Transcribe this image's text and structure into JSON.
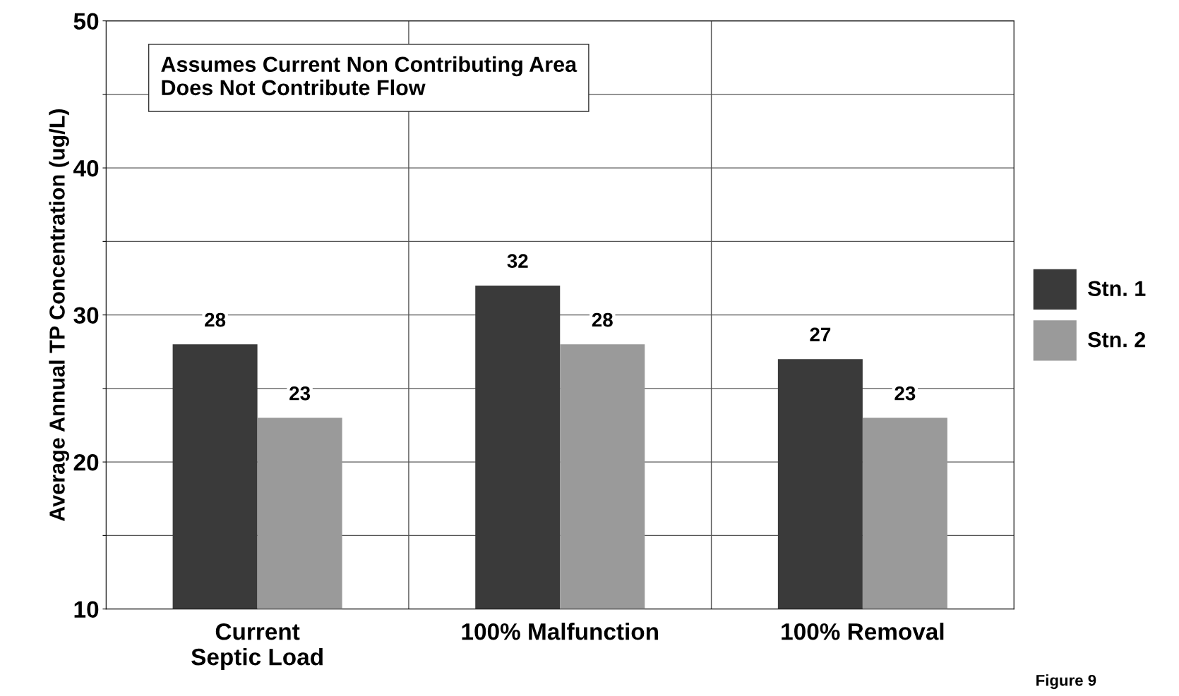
{
  "chart_data": {
    "type": "bar",
    "ylabel": "Average Annual TP Concentration (ug/L)",
    "categories": [
      "Current\nSeptic Load",
      "100% Malfunction",
      "100% Removal"
    ],
    "series": [
      {
        "name": "Stn. 1",
        "color": "#3a3a3a",
        "values": [
          28,
          32,
          27
        ]
      },
      {
        "name": "Stn. 2",
        "color": "#9a9a9a",
        "values": [
          23,
          28,
          23
        ]
      }
    ],
    "ylim": [
      10,
      50
    ],
    "yticks": [
      10,
      {
        "value": 15,
        "label": null
      },
      20,
      {
        "value": 25,
        "label": null
      },
      30,
      {
        "value": 35,
        "label": null
      },
      40,
      {
        "value": 45,
        "label": null
      },
      50
    ],
    "grid": true,
    "legend": "right",
    "data_labels": true,
    "annotations": [
      "Assumes Current Non Contributing Area\nDoes Not Contribute Flow",
      "Figure 9"
    ]
  }
}
